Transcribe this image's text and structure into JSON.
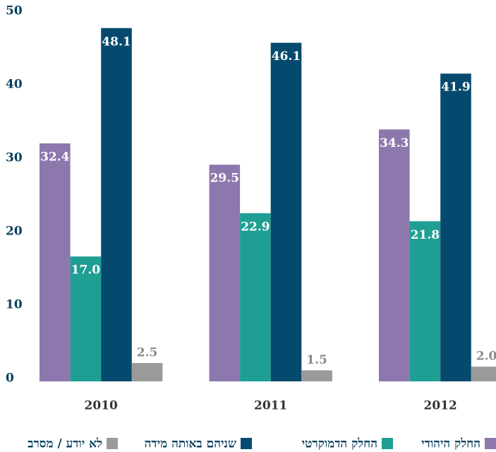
{
  "chart_data": {
    "type": "bar",
    "categories": [
      "2010",
      "2011",
      "2012"
    ],
    "series": [
      {
        "name": "החלק היהודי",
        "color": "#8c78ad",
        "values": [
          32.4,
          29.5,
          34.3
        ],
        "value_labels": [
          "32.4",
          "29.5",
          "34.3"
        ]
      },
      {
        "name": "החלק הדמוקרטי",
        "color": "#1f9e94",
        "values": [
          17.0,
          22.9,
          21.8
        ],
        "value_labels": [
          "17.0",
          "22.9",
          "21.8"
        ]
      },
      {
        "name": "שניהם באותה מידה",
        "color": "#054a6e",
        "values": [
          48.1,
          46.1,
          41.9
        ],
        "value_labels": [
          "48.1",
          "46.1",
          "41.9"
        ]
      },
      {
        "name": "לא יודע / מסרב",
        "color": "#9a9a9a",
        "values": [
          2.5,
          1.5,
          2.0
        ],
        "value_labels": [
          "2.5",
          "1.5",
          "2.0"
        ]
      }
    ],
    "ylim": [
      0,
      50
    ],
    "yticks": [
      0,
      10,
      20,
      30,
      40,
      50
    ],
    "grid": false,
    "legend": "bottom"
  }
}
